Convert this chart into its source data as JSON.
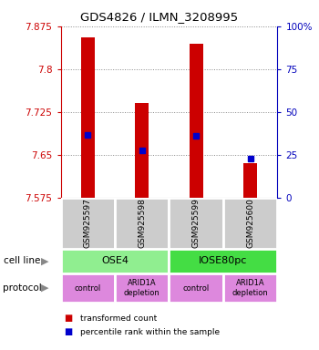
{
  "title": "GDS4826 / ILMN_3208995",
  "samples": [
    "GSM925597",
    "GSM925598",
    "GSM925599",
    "GSM925600"
  ],
  "bar_values": [
    7.855,
    7.74,
    7.845,
    7.635
  ],
  "bar_base": 7.575,
  "blue_marker_values": [
    7.685,
    7.658,
    7.683,
    7.643
  ],
  "ylim_left": [
    7.575,
    7.875
  ],
  "ylim_right": [
    0,
    100
  ],
  "yticks_left": [
    7.575,
    7.65,
    7.725,
    7.8,
    7.875
  ],
  "ytick_labels_left": [
    "7.575",
    "7.65",
    "7.725",
    "7.8",
    "7.875"
  ],
  "yticks_right": [
    0,
    25,
    50,
    75,
    100
  ],
  "ytick_labels_right": [
    "0",
    "25",
    "50",
    "75",
    "100%"
  ],
  "bar_color": "#cc0000",
  "blue_color": "#0000cc",
  "cell_line_groups": [
    {
      "label": "OSE4",
      "cols": [
        0,
        1
      ],
      "color": "#90ee90"
    },
    {
      "label": "IOSE80pc",
      "cols": [
        2,
        3
      ],
      "color": "#44dd44"
    }
  ],
  "protocol_groups": [
    {
      "label": "control",
      "col": 0
    },
    {
      "label": "ARID1A\ndepletion",
      "col": 1
    },
    {
      "label": "control",
      "col": 2
    },
    {
      "label": "ARID1A\ndepletion",
      "col": 3
    }
  ],
  "legend_items": [
    {
      "color": "#cc0000",
      "label": "transformed count"
    },
    {
      "color": "#0000cc",
      "label": "percentile rank within the sample"
    }
  ],
  "left_axis_color": "#cc0000",
  "right_axis_color": "#0000bb",
  "grid_color": "#888888",
  "bar_width": 0.25,
  "sample_box_color": "#cccccc",
  "protocol_color": "#dd88dd",
  "arrow_color": "#888888"
}
